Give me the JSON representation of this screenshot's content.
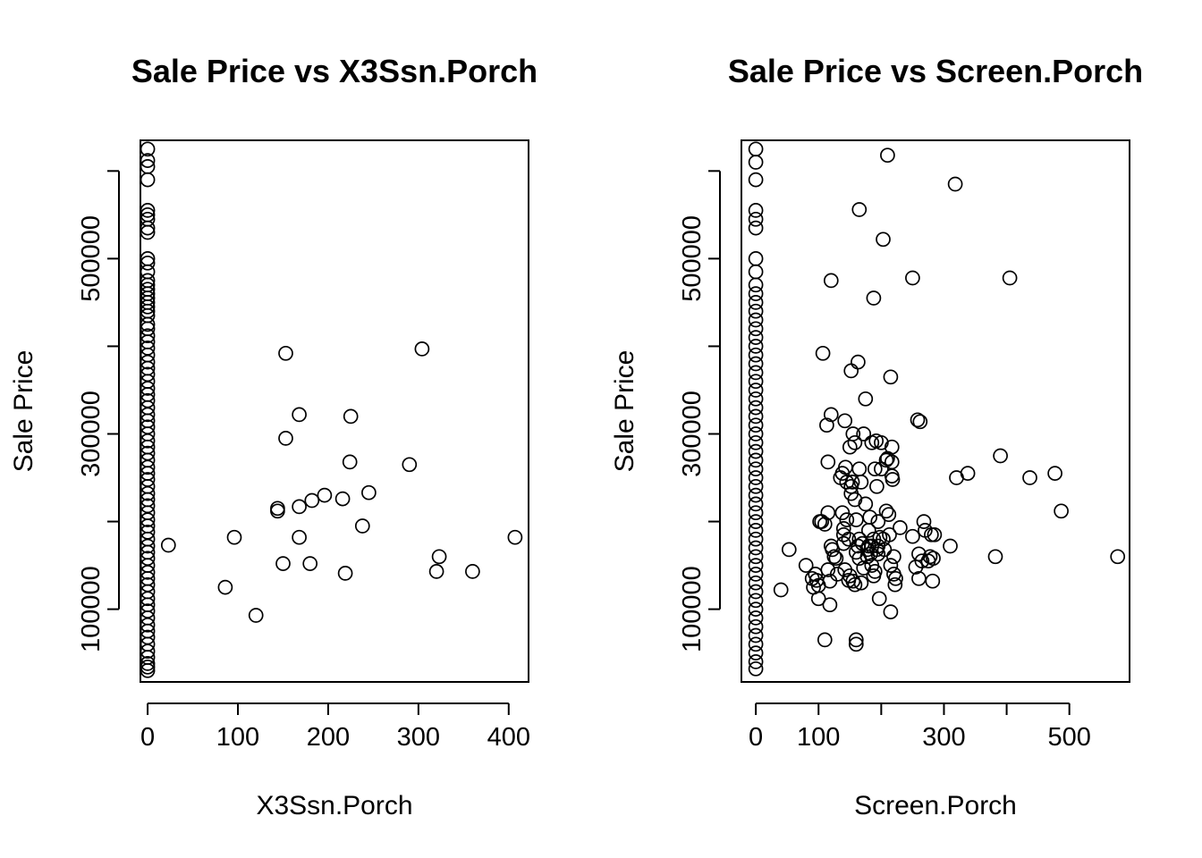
{
  "chart_data": [
    {
      "type": "scatter",
      "title": "Sale Price vs X3Ssn.Porch",
      "xlabel": "X3Ssn.Porch",
      "ylabel": "Sale Price",
      "xlim": [
        -8,
        422
      ],
      "ylim": [
        17000,
        635000
      ],
      "xticks": [
        0,
        100,
        200,
        300,
        400
      ],
      "xtick_labels": [
        "0",
        "100",
        "200",
        "300",
        "400"
      ],
      "yticks": [
        100000,
        300000,
        500000
      ],
      "ytick_labels": [
        "100000",
        "300000",
        "500000"
      ],
      "grid": false,
      "legend": "none",
      "points": [
        [
          0,
          625000
        ],
        [
          0,
          612000
        ],
        [
          0,
          605000
        ],
        [
          0,
          590000
        ],
        [
          0,
          555000
        ],
        [
          0,
          550000
        ],
        [
          0,
          545000
        ],
        [
          0,
          535000
        ],
        [
          0,
          530000
        ],
        [
          0,
          500000
        ],
        [
          0,
          495000
        ],
        [
          0,
          485000
        ],
        [
          0,
          475000
        ],
        [
          0,
          470000
        ],
        [
          0,
          465000
        ],
        [
          0,
          460000
        ],
        [
          0,
          455000
        ],
        [
          0,
          450000
        ],
        [
          0,
          445000
        ],
        [
          0,
          440000
        ],
        [
          0,
          435000
        ],
        [
          0,
          425000
        ],
        [
          0,
          420000
        ],
        [
          0,
          412000
        ],
        [
          0,
          405000
        ],
        [
          0,
          398000
        ],
        [
          0,
          390000
        ],
        [
          0,
          382000
        ],
        [
          0,
          375000
        ],
        [
          0,
          368000
        ],
        [
          0,
          360000
        ],
        [
          0,
          352000
        ],
        [
          0,
          345000
        ],
        [
          0,
          338000
        ],
        [
          0,
          330000
        ],
        [
          0,
          322000
        ],
        [
          0,
          315000
        ],
        [
          0,
          308000
        ],
        [
          0,
          300000
        ],
        [
          0,
          292000
        ],
        [
          0,
          285000
        ],
        [
          0,
          278000
        ],
        [
          0,
          270000
        ],
        [
          0,
          262000
        ],
        [
          0,
          255000
        ],
        [
          0,
          248000
        ],
        [
          0,
          240000
        ],
        [
          0,
          232000
        ],
        [
          0,
          225000
        ],
        [
          0,
          218000
        ],
        [
          0,
          210000
        ],
        [
          0,
          202000
        ],
        [
          0,
          195000
        ],
        [
          0,
          188000
        ],
        [
          0,
          180000
        ],
        [
          0,
          172000
        ],
        [
          0,
          165000
        ],
        [
          0,
          158000
        ],
        [
          0,
          150000
        ],
        [
          0,
          142000
        ],
        [
          0,
          135000
        ],
        [
          0,
          128000
        ],
        [
          0,
          120000
        ],
        [
          0,
          112000
        ],
        [
          0,
          105000
        ],
        [
          0,
          98000
        ],
        [
          0,
          90000
        ],
        [
          0,
          82000
        ],
        [
          0,
          75000
        ],
        [
          0,
          68000
        ],
        [
          0,
          60000
        ],
        [
          0,
          52000
        ],
        [
          0,
          45000
        ],
        [
          0,
          38000
        ],
        [
          0,
          34000
        ],
        [
          0,
          30000
        ],
        [
          23,
          173000
        ],
        [
          86,
          125000
        ],
        [
          96,
          182000
        ],
        [
          120,
          93000
        ],
        [
          144,
          212000
        ],
        [
          144,
          215000
        ],
        [
          150,
          152000
        ],
        [
          153,
          295000
        ],
        [
          153,
          392000
        ],
        [
          168,
          182000
        ],
        [
          168,
          217000
        ],
        [
          168,
          322000
        ],
        [
          180,
          152000
        ],
        [
          182,
          224000
        ],
        [
          196,
          230000
        ],
        [
          216,
          226000
        ],
        [
          219,
          141000
        ],
        [
          224,
          268000
        ],
        [
          225,
          320000
        ],
        [
          238,
          195000
        ],
        [
          245,
          233000
        ],
        [
          290,
          265000
        ],
        [
          304,
          397000
        ],
        [
          320,
          143000
        ],
        [
          323,
          160000
        ],
        [
          360,
          143000
        ],
        [
          407,
          182000
        ]
      ]
    },
    {
      "type": "scatter",
      "title": "Sale Price vs Screen.Porch",
      "xlabel": "Screen.Porch",
      "ylabel": "Sale Price",
      "xlim": [
        -23,
        596
      ],
      "ylim": [
        17000,
        635000
      ],
      "xticks": [
        0,
        100,
        200,
        300,
        400,
        500
      ],
      "xtick_labels": [
        "0",
        "100",
        "",
        "300",
        "",
        "500"
      ],
      "yticks": [
        100000,
        300000,
        500000
      ],
      "ytick_labels": [
        "100000",
        "300000",
        "500000"
      ],
      "grid": false,
      "legend": "none",
      "points": [
        [
          0,
          625000
        ],
        [
          0,
          610000
        ],
        [
          0,
          590000
        ],
        [
          0,
          555000
        ],
        [
          0,
          545000
        ],
        [
          0,
          535000
        ],
        [
          0,
          500000
        ],
        [
          0,
          485000
        ],
        [
          0,
          470000
        ],
        [
          0,
          460000
        ],
        [
          0,
          450000
        ],
        [
          0,
          440000
        ],
        [
          0,
          430000
        ],
        [
          0,
          420000
        ],
        [
          0,
          410000
        ],
        [
          0,
          400000
        ],
        [
          0,
          390000
        ],
        [
          0,
          380000
        ],
        [
          0,
          370000
        ],
        [
          0,
          360000
        ],
        [
          0,
          350000
        ],
        [
          0,
          340000
        ],
        [
          0,
          330000
        ],
        [
          0,
          320000
        ],
        [
          0,
          310000
        ],
        [
          0,
          300000
        ],
        [
          0,
          290000
        ],
        [
          0,
          280000
        ],
        [
          0,
          270000
        ],
        [
          0,
          260000
        ],
        [
          0,
          250000
        ],
        [
          0,
          240000
        ],
        [
          0,
          230000
        ],
        [
          0,
          220000
        ],
        [
          0,
          210000
        ],
        [
          0,
          200000
        ],
        [
          0,
          190000
        ],
        [
          0,
          180000
        ],
        [
          0,
          170000
        ],
        [
          0,
          160000
        ],
        [
          0,
          150000
        ],
        [
          0,
          140000
        ],
        [
          0,
          130000
        ],
        [
          0,
          120000
        ],
        [
          0,
          110000
        ],
        [
          0,
          100000
        ],
        [
          0,
          90000
        ],
        [
          0,
          80000
        ],
        [
          0,
          70000
        ],
        [
          0,
          60000
        ],
        [
          0,
          50000
        ],
        [
          0,
          40000
        ],
        [
          0,
          32000
        ],
        [
          40,
          122000
        ],
        [
          53,
          168000
        ],
        [
          80,
          150000
        ],
        [
          90,
          135000
        ],
        [
          92,
          125000
        ],
        [
          95,
          140000
        ],
        [
          97,
          133000
        ],
        [
          100,
          127000
        ],
        [
          100,
          112000
        ],
        [
          102,
          200000
        ],
        [
          105,
          200000
        ],
        [
          107,
          392000
        ],
        [
          110,
          197000
        ],
        [
          110,
          65000
        ],
        [
          113,
          310000
        ],
        [
          115,
          210000
        ],
        [
          115,
          268000
        ],
        [
          115,
          145000
        ],
        [
          118,
          132000
        ],
        [
          118,
          105000
        ],
        [
          120,
          172000
        ],
        [
          120,
          322000
        ],
        [
          120,
          475000
        ],
        [
          122,
          168000
        ],
        [
          125,
          160000
        ],
        [
          128,
          158000
        ],
        [
          130,
          140000
        ],
        [
          135,
          250000
        ],
        [
          138,
          255000
        ],
        [
          138,
          210000
        ],
        [
          140,
          185000
        ],
        [
          140,
          192000
        ],
        [
          140,
          175000
        ],
        [
          142,
          315000
        ],
        [
          142,
          145000
        ],
        [
          143,
          262000
        ],
        [
          145,
          245000
        ],
        [
          145,
          202000
        ],
        [
          148,
          180000
        ],
        [
          148,
          133000
        ],
        [
          150,
          138000
        ],
        [
          150,
          285000
        ],
        [
          152,
          240000
        ],
        [
          152,
          372000
        ],
        [
          152,
          232000
        ],
        [
          154,
          245000
        ],
        [
          155,
          300000
        ],
        [
          155,
          132000
        ],
        [
          158,
          128000
        ],
        [
          158,
          290000
        ],
        [
          158,
          225000
        ],
        [
          160,
          165000
        ],
        [
          160,
          202000
        ],
        [
          160,
          60000
        ],
        [
          160,
          65000
        ],
        [
          163,
          172000
        ],
        [
          163,
          382000
        ],
        [
          165,
          158000
        ],
        [
          165,
          180000
        ],
        [
          165,
          260000
        ],
        [
          165,
          556000
        ],
        [
          168,
          130000
        ],
        [
          168,
          245000
        ],
        [
          170,
          175000
        ],
        [
          172,
          147000
        ],
        [
          172,
          300000
        ],
        [
          175,
          340000
        ],
        [
          175,
          220000
        ],
        [
          178,
          168000
        ],
        [
          178,
          160000
        ],
        [
          180,
          190000
        ],
        [
          180,
          172000
        ],
        [
          182,
          205000
        ],
        [
          183,
          163000
        ],
        [
          185,
          150000
        ],
        [
          185,
          172000
        ],
        [
          185,
          290000
        ],
        [
          188,
          455000
        ],
        [
          188,
          180000
        ],
        [
          188,
          138000
        ],
        [
          190,
          260000
        ],
        [
          190,
          143000
        ],
        [
          192,
          292000
        ],
        [
          193,
          168000
        ],
        [
          193,
          240000
        ],
        [
          195,
          200000
        ],
        [
          195,
          172000
        ],
        [
          195,
          163000
        ],
        [
          197,
          112000
        ],
        [
          198,
          182000
        ],
        [
          200,
          260000
        ],
        [
          200,
          290000
        ],
        [
          203,
          522000
        ],
        [
          203,
          180000
        ],
        [
          205,
          168000
        ],
        [
          208,
          212000
        ],
        [
          208,
          270000
        ],
        [
          210,
          618000
        ],
        [
          210,
          272000
        ],
        [
          212,
          208000
        ],
        [
          213,
          185000
        ],
        [
          215,
          150000
        ],
        [
          215,
          97000
        ],
        [
          215,
          365000
        ],
        [
          217,
          268000
        ],
        [
          217,
          252000
        ],
        [
          217,
          285000
        ],
        [
          218,
          248000
        ],
        [
          220,
          140000
        ],
        [
          220,
          160000
        ],
        [
          222,
          128000
        ],
        [
          223,
          135000
        ],
        [
          230,
          193000
        ],
        [
          250,
          478000
        ],
        [
          250,
          183000
        ],
        [
          255,
          148000
        ],
        [
          258,
          316000
        ],
        [
          260,
          163000
        ],
        [
          260,
          135000
        ],
        [
          262,
          314000
        ],
        [
          265,
          155000
        ],
        [
          268,
          200000
        ],
        [
          270,
          190000
        ],
        [
          275,
          155000
        ],
        [
          278,
          160000
        ],
        [
          280,
          185000
        ],
        [
          282,
          132000
        ],
        [
          283,
          158000
        ],
        [
          285,
          185000
        ],
        [
          310,
          172000
        ],
        [
          318,
          585000
        ],
        [
          320,
          250000
        ],
        [
          338,
          255000
        ],
        [
          382,
          160000
        ],
        [
          390,
          275000
        ],
        [
          405,
          478000
        ],
        [
          437,
          250000
        ],
        [
          477,
          255000
        ],
        [
          487,
          212000
        ],
        [
          577,
          160000
        ]
      ]
    }
  ]
}
